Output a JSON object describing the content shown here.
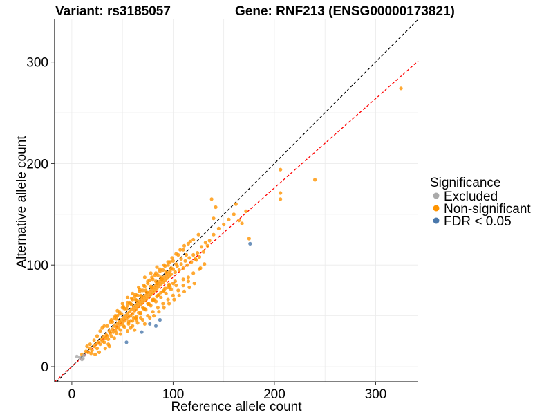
{
  "chart_data": {
    "type": "scatter",
    "title_variant": "Variant: rs3185057",
    "title_gene": "Gene: RNF213 (ENSG00000173821)",
    "xlabel": "Reference allele count",
    "ylabel": "Alternative allele count",
    "xlim": [
      -17,
      342
    ],
    "ylim": [
      -15,
      342
    ],
    "x_ticks": [
      0,
      100,
      200,
      300
    ],
    "y_ticks": [
      0,
      100,
      200,
      300
    ],
    "grid": true,
    "legend": {
      "title": "Significance",
      "position": "right",
      "entries": [
        {
          "label": "Excluded",
          "color": "#aaaaaa"
        },
        {
          "label": "Non-significant",
          "color": "#ff9400"
        },
        {
          "label": "FDR < 0.05",
          "color": "#4a78ab"
        }
      ]
    },
    "reference_lines": [
      {
        "name": "identity",
        "slope": 1.0,
        "intercept": 0,
        "color": "#000000",
        "style": "dashed"
      },
      {
        "name": "fit",
        "slope": 0.88,
        "intercept": 0,
        "color": "#ff0000",
        "style": "dashed"
      }
    ],
    "series": [
      {
        "name": "Excluded",
        "color": "#aaaaaa",
        "points": [
          [
            5,
            10
          ],
          [
            8,
            9
          ],
          [
            10,
            7
          ],
          [
            11,
            8
          ],
          [
            12,
            11
          ]
        ]
      },
      {
        "name": "FDR < 0.05",
        "color": "#4a78ab",
        "points": [
          [
            54,
            24
          ],
          [
            69,
            34
          ],
          [
            77,
            42
          ],
          [
            83,
            40
          ],
          [
            87,
            46
          ],
          [
            176,
            121
          ]
        ]
      },
      {
        "name": "Non-significant",
        "color": "#ff9400",
        "points": [
          [
            10,
            12
          ],
          [
            14,
            15
          ],
          [
            16,
            14
          ],
          [
            18,
            18
          ],
          [
            20,
            16
          ],
          [
            22,
            20
          ],
          [
            24,
            22
          ],
          [
            25,
            18
          ],
          [
            26,
            24
          ],
          [
            28,
            22
          ],
          [
            29,
            27
          ],
          [
            30,
            25
          ],
          [
            31,
            29
          ],
          [
            32,
            24
          ],
          [
            33,
            28
          ],
          [
            34,
            31
          ],
          [
            35,
            30
          ],
          [
            36,
            27
          ],
          [
            37,
            35
          ],
          [
            38,
            33
          ],
          [
            39,
            30
          ],
          [
            40,
            37
          ],
          [
            41,
            34
          ],
          [
            42,
            40
          ],
          [
            43,
            36
          ],
          [
            44,
            39
          ],
          [
            45,
            42
          ],
          [
            46,
            38
          ],
          [
            47,
            44
          ],
          [
            48,
            41
          ],
          [
            49,
            46
          ],
          [
            50,
            43
          ],
          [
            51,
            48
          ],
          [
            52,
            45
          ],
          [
            53,
            50
          ],
          [
            54,
            47
          ],
          [
            55,
            52
          ],
          [
            56,
            49
          ],
          [
            57,
            54
          ],
          [
            58,
            50
          ],
          [
            59,
            56
          ],
          [
            60,
            52
          ],
          [
            61,
            58
          ],
          [
            62,
            55
          ],
          [
            63,
            60
          ],
          [
            64,
            57
          ],
          [
            65,
            62
          ],
          [
            66,
            59
          ],
          [
            67,
            64
          ],
          [
            68,
            61
          ],
          [
            69,
            66
          ],
          [
            70,
            63
          ],
          [
            71,
            68
          ],
          [
            72,
            65
          ],
          [
            73,
            70
          ],
          [
            74,
            67
          ],
          [
            75,
            72
          ],
          [
            76,
            69
          ],
          [
            77,
            74
          ],
          [
            78,
            71
          ],
          [
            79,
            76
          ],
          [
            80,
            73
          ],
          [
            81,
            78
          ],
          [
            82,
            75
          ],
          [
            83,
            80
          ],
          [
            84,
            77
          ],
          [
            85,
            82
          ],
          [
            86,
            79
          ],
          [
            87,
            84
          ],
          [
            88,
            81
          ],
          [
            89,
            86
          ],
          [
            90,
            83
          ],
          [
            91,
            88
          ],
          [
            92,
            85
          ],
          [
            93,
            90
          ],
          [
            94,
            87
          ],
          [
            95,
            92
          ],
          [
            96,
            89
          ],
          [
            97,
            94
          ],
          [
            98,
            91
          ],
          [
            100,
            96
          ],
          [
            102,
            93
          ],
          [
            104,
            99
          ],
          [
            106,
            95
          ],
          [
            108,
            101
          ],
          [
            110,
            97
          ],
          [
            112,
            104
          ],
          [
            114,
            100
          ],
          [
            116,
            107
          ],
          [
            118,
            103
          ],
          [
            120,
            110
          ],
          [
            122,
            106
          ],
          [
            124,
            112
          ],
          [
            126,
            108
          ],
          [
            128,
            118
          ],
          [
            130,
            113
          ],
          [
            132,
            122
          ],
          [
            134,
            119
          ],
          [
            136,
            124
          ],
          [
            140,
            130
          ],
          [
            145,
            136
          ],
          [
            150,
            140
          ],
          [
            155,
            145
          ],
          [
            160,
            150
          ],
          [
            165,
            144
          ],
          [
            140,
            146
          ],
          [
            142,
            157
          ],
          [
            138,
            165
          ],
          [
            162,
            160
          ],
          [
            168,
            141
          ],
          [
            172,
            153
          ],
          [
            175,
            126
          ],
          [
            123,
            105
          ],
          [
            30,
            38
          ],
          [
            40,
            44
          ],
          [
            45,
            50
          ],
          [
            50,
            58
          ],
          [
            55,
            60
          ],
          [
            60,
            66
          ],
          [
            65,
            70
          ],
          [
            70,
            75
          ],
          [
            75,
            82
          ],
          [
            80,
            86
          ],
          [
            85,
            90
          ],
          [
            90,
            95
          ],
          [
            95,
            100
          ],
          [
            100,
            104
          ],
          [
            105,
            110
          ],
          [
            110,
            115
          ],
          [
            115,
            121
          ],
          [
            120,
            125
          ],
          [
            125,
            130
          ],
          [
            35,
            40
          ],
          [
            38,
            44
          ],
          [
            42,
            48
          ],
          [
            47,
            52
          ],
          [
            52,
            57
          ],
          [
            57,
            63
          ],
          [
            62,
            69
          ],
          [
            67,
            74
          ],
          [
            72,
            79
          ],
          [
            77,
            85
          ],
          [
            82,
            90
          ],
          [
            87,
            94
          ],
          [
            92,
            99
          ],
          [
            97,
            103
          ],
          [
            36,
            22
          ],
          [
            42,
            28
          ],
          [
            48,
            32
          ],
          [
            55,
            35
          ],
          [
            60,
            40
          ],
          [
            65,
            43
          ],
          [
            70,
            46
          ],
          [
            75,
            50
          ],
          [
            80,
            54
          ],
          [
            85,
            58
          ],
          [
            90,
            62
          ],
          [
            95,
            66
          ],
          [
            100,
            70
          ],
          [
            105,
            75
          ],
          [
            110,
            80
          ],
          [
            115,
            84
          ],
          [
            58,
            45
          ],
          [
            63,
            48
          ],
          [
            68,
            52
          ],
          [
            73,
            56
          ],
          [
            78,
            60
          ],
          [
            83,
            64
          ],
          [
            88,
            68
          ],
          [
            93,
            72
          ],
          [
            98,
            76
          ],
          [
            103,
            80
          ],
          [
            25,
            30
          ],
          [
            28,
            35
          ],
          [
            32,
            40
          ],
          [
            22,
            26
          ],
          [
            18,
            22
          ],
          [
            15,
            20
          ],
          [
            45,
            55
          ],
          [
            50,
            62
          ],
          [
            55,
            68
          ],
          [
            60,
            72
          ],
          [
            66,
            78
          ],
          [
            72,
            88
          ],
          [
            78,
            92
          ],
          [
            84,
            98
          ],
          [
            70,
            58
          ],
          [
            75,
            62
          ],
          [
            80,
            66
          ],
          [
            85,
            70
          ],
          [
            90,
            74
          ],
          [
            95,
            78
          ],
          [
            100,
            82
          ],
          [
            58,
            62
          ],
          [
            63,
            66
          ],
          [
            68,
            70
          ],
          [
            73,
            75
          ],
          [
            78,
            79
          ],
          [
            83,
            84
          ],
          [
            88,
            88
          ],
          [
            93,
            93
          ],
          [
            98,
            97
          ],
          [
            103,
            101
          ],
          [
            108,
            106
          ],
          [
            113,
            110
          ],
          [
            44,
            47
          ],
          [
            49,
            52
          ],
          [
            54,
            57
          ],
          [
            59,
            61
          ],
          [
            64,
            65
          ],
          [
            69,
            69
          ],
          [
            74,
            73
          ],
          [
            79,
            78
          ],
          [
            84,
            82
          ],
          [
            89,
            86
          ],
          [
            51,
            40
          ],
          [
            56,
            44
          ],
          [
            61,
            48
          ],
          [
            66,
            53
          ],
          [
            71,
            57
          ],
          [
            76,
            62
          ],
          [
            81,
            66
          ],
          [
            86,
            71
          ],
          [
            91,
            75
          ],
          [
            96,
            80
          ],
          [
            206,
            194
          ],
          [
            206,
            171
          ],
          [
            206,
            165
          ],
          [
            240,
            184
          ],
          [
            325,
            274
          ],
          [
            131,
            101
          ],
          [
            127,
            97
          ],
          [
            120,
            92
          ],
          [
            115,
            88
          ],
          [
            110,
            86
          ],
          [
            102,
            84
          ],
          [
            97,
            78
          ],
          [
            37,
            20
          ],
          [
            33,
            18
          ],
          [
            27,
            14
          ],
          [
            23,
            12
          ],
          [
            19,
            13
          ],
          [
            62,
            36
          ],
          [
            58,
            38
          ],
          [
            64,
            46
          ],
          [
            68,
            48
          ],
          [
            72,
            42
          ],
          [
            77,
            48
          ],
          [
            81,
            50
          ],
          [
            86,
            54
          ],
          [
            91,
            58
          ],
          [
            96,
            62
          ],
          [
            101,
            66
          ],
          [
            106,
            70
          ],
          [
            111,
            74
          ],
          [
            116,
            78
          ],
          [
            121,
            82
          ],
          [
            126,
            96
          ],
          [
            44,
            33
          ],
          [
            48,
            36
          ],
          [
            52,
            39
          ],
          [
            56,
            42
          ],
          [
            60,
            45
          ],
          [
            64,
            49
          ],
          [
            68,
            53
          ],
          [
            72,
            57
          ],
          [
            76,
            61
          ],
          [
            80,
            65
          ],
          [
            84,
            69
          ],
          [
            88,
            73
          ],
          [
            92,
            77
          ],
          [
            96,
            81
          ],
          [
            39,
            46
          ],
          [
            43,
            50
          ],
          [
            47,
            54
          ],
          [
            51,
            59
          ],
          [
            55,
            63
          ],
          [
            59,
            67
          ],
          [
            63,
            71
          ],
          [
            67,
            76
          ],
          [
            71,
            80
          ],
          [
            75,
            84
          ],
          [
            79,
            88
          ],
          [
            83,
            92
          ],
          [
            87,
            96
          ],
          [
            91,
            100
          ],
          [
            95,
            103
          ],
          [
            99,
            107
          ],
          [
            103,
            111
          ],
          [
            107,
            115
          ],
          [
            111,
            119
          ],
          [
            117,
            123
          ]
        ]
      }
    ]
  }
}
